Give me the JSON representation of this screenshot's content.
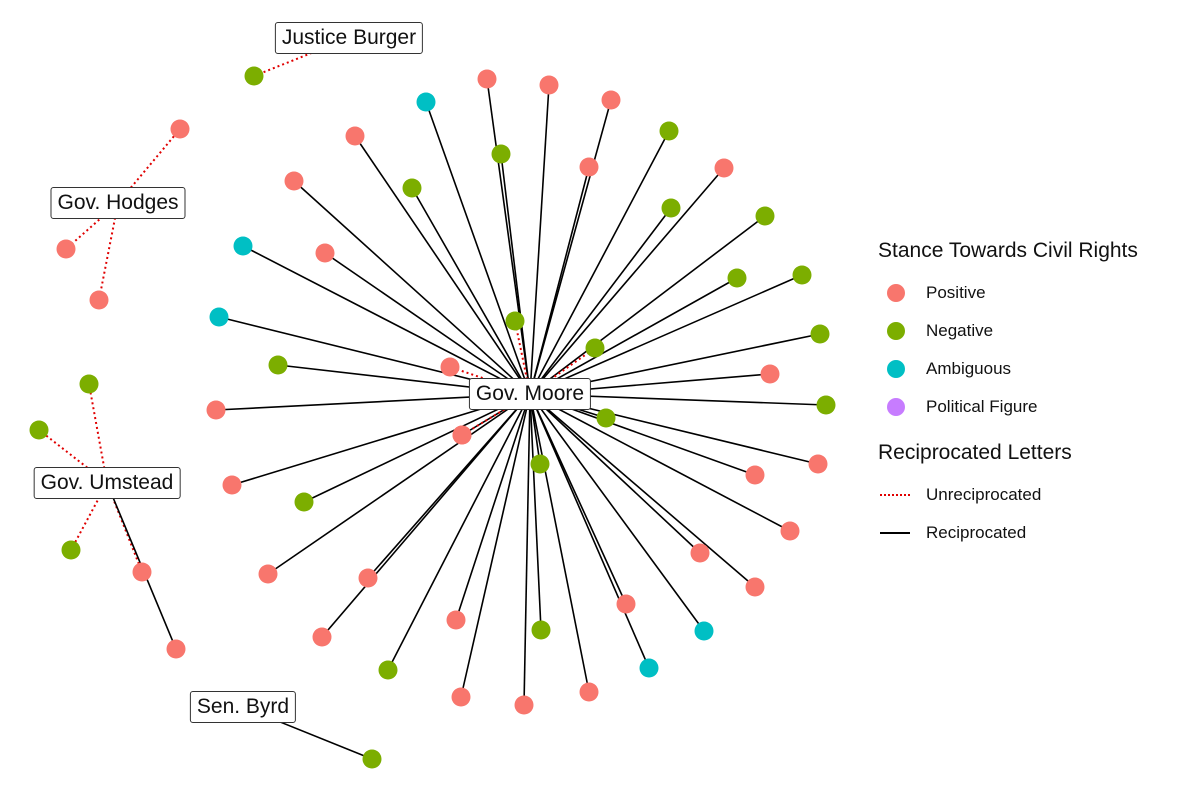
{
  "colors": {
    "positive": "#F8766D",
    "negative": "#7CAE00",
    "ambiguous": "#00BFC4",
    "political": "#C77CFF",
    "reciprocated": "#000000",
    "unreciprocated": "#E00000"
  },
  "hubs": [
    {
      "id": "moore",
      "label": "Gov. Moore"
    },
    {
      "id": "burger",
      "label": "Justice Burger"
    },
    {
      "id": "hodges",
      "label": "Gov. Hodges"
    },
    {
      "id": "umstead",
      "label": "Gov. Umstead"
    },
    {
      "id": "byrd",
      "label": "Sen. Byrd"
    }
  ],
  "nodes": [
    {
      "hub": "moore",
      "stance": "positive",
      "link": "reciprocated"
    },
    {
      "hub": "moore",
      "stance": "positive",
      "link": "reciprocated"
    },
    {
      "hub": "moore",
      "stance": "positive",
      "link": "reciprocated"
    },
    {
      "hub": "moore",
      "stance": "ambiguous",
      "link": "reciprocated"
    },
    {
      "hub": "moore",
      "stance": "negative",
      "link": "reciprocated"
    },
    {
      "hub": "moore",
      "stance": "negative",
      "link": "reciprocated"
    },
    {
      "hub": "moore",
      "stance": "positive",
      "link": "reciprocated"
    },
    {
      "hub": "moore",
      "stance": "positive",
      "link": "reciprocated"
    },
    {
      "hub": "moore",
      "stance": "negative",
      "link": "reciprocated"
    },
    {
      "hub": "moore",
      "stance": "positive",
      "link": "reciprocated"
    },
    {
      "hub": "moore",
      "stance": "negative",
      "link": "reciprocated"
    },
    {
      "hub": "moore",
      "stance": "negative",
      "link": "reciprocated"
    },
    {
      "hub": "moore",
      "stance": "ambiguous",
      "link": "reciprocated"
    },
    {
      "hub": "moore",
      "stance": "positive",
      "link": "reciprocated"
    },
    {
      "hub": "moore",
      "stance": "positive",
      "link": "reciprocated"
    },
    {
      "hub": "moore",
      "stance": "negative",
      "link": "reciprocated"
    },
    {
      "hub": "moore",
      "stance": "ambiguous",
      "link": "reciprocated"
    },
    {
      "hub": "moore",
      "stance": "negative",
      "link": "reciprocated"
    },
    {
      "hub": "moore",
      "stance": "positive",
      "link": "reciprocated"
    },
    {
      "hub": "moore",
      "stance": "negative",
      "link": "reciprocated"
    },
    {
      "hub": "moore",
      "stance": "negative",
      "link": "reciprocated"
    },
    {
      "hub": "moore",
      "stance": "positive",
      "link": "reciprocated"
    },
    {
      "hub": "moore",
      "stance": "negative",
      "link": "reciprocated"
    },
    {
      "hub": "moore",
      "stance": "positive",
      "link": "reciprocated"
    },
    {
      "hub": "moore",
      "stance": "positive",
      "link": "reciprocated"
    },
    {
      "hub": "moore",
      "stance": "positive",
      "link": "reciprocated"
    },
    {
      "hub": "moore",
      "stance": "positive",
      "link": "reciprocated"
    },
    {
      "hub": "moore",
      "stance": "positive",
      "link": "reciprocated"
    },
    {
      "hub": "moore",
      "stance": "positive",
      "link": "reciprocated"
    },
    {
      "hub": "moore",
      "stance": "positive",
      "link": "reciprocated"
    },
    {
      "hub": "moore",
      "stance": "positive",
      "link": "reciprocated"
    },
    {
      "hub": "moore",
      "stance": "ambiguous",
      "link": "reciprocated"
    },
    {
      "hub": "moore",
      "stance": "ambiguous",
      "link": "reciprocated"
    },
    {
      "hub": "moore",
      "stance": "positive",
      "link": "reciprocated"
    },
    {
      "hub": "moore",
      "stance": "positive",
      "link": "reciprocated"
    },
    {
      "hub": "moore",
      "stance": "positive",
      "link": "reciprocated"
    },
    {
      "hub": "moore",
      "stance": "negative",
      "link": "reciprocated"
    },
    {
      "hub": "moore",
      "stance": "positive",
      "link": "reciprocated"
    },
    {
      "hub": "moore",
      "stance": "positive",
      "link": "reciprocated"
    },
    {
      "hub": "moore",
      "stance": "negative",
      "link": "reciprocated"
    },
    {
      "hub": "moore",
      "stance": "positive",
      "link": "reciprocated"
    },
    {
      "hub": "moore",
      "stance": "positive",
      "link": "reciprocated"
    },
    {
      "hub": "moore",
      "stance": "negative",
      "link": "reciprocated"
    },
    {
      "hub": "moore",
      "stance": "negative",
      "link": "reciprocated"
    },
    {
      "hub": "moore",
      "stance": "negative",
      "link": "reciprocated"
    },
    {
      "hub": "moore",
      "stance": "positive",
      "link": "unreciprocated"
    },
    {
      "hub": "moore",
      "stance": "positive",
      "link": "unreciprocated"
    },
    {
      "hub": "moore",
      "stance": "negative",
      "link": "unreciprocated"
    },
    {
      "hub": "moore",
      "stance": "negative",
      "link": "unreciprocated"
    },
    {
      "hub": "burger",
      "stance": "negative",
      "link": "unreciprocated"
    },
    {
      "hub": "hodges",
      "stance": "positive",
      "link": "unreciprocated"
    },
    {
      "hub": "hodges",
      "stance": "positive",
      "link": "unreciprocated"
    },
    {
      "hub": "hodges",
      "stance": "positive",
      "link": "unreciprocated"
    },
    {
      "hub": "umstead",
      "stance": "negative",
      "link": "unreciprocated"
    },
    {
      "hub": "umstead",
      "stance": "negative",
      "link": "unreciprocated"
    },
    {
      "hub": "umstead",
      "stance": "negative",
      "link": "unreciprocated"
    },
    {
      "hub": "umstead",
      "stance": "positive",
      "link": "unreciprocated"
    },
    {
      "hub": "umstead",
      "stance": "positive",
      "link": "reciprocated"
    },
    {
      "hub": "byrd",
      "stance": "negative",
      "link": "reciprocated"
    }
  ],
  "legend": {
    "stance_title": "Stance Towards Civil Rights",
    "stance_items": [
      {
        "key": "positive",
        "label": "Positive"
      },
      {
        "key": "negative",
        "label": "Negative"
      },
      {
        "key": "ambiguous",
        "label": "Ambiguous"
      },
      {
        "key": "political",
        "label": "Political Figure"
      }
    ],
    "letters_title": "Reciprocated Letters",
    "letters_items": [
      {
        "key": "unreciprocated",
        "label": "Unreciprocated"
      },
      {
        "key": "reciprocated",
        "label": "Reciprocated"
      }
    ]
  }
}
